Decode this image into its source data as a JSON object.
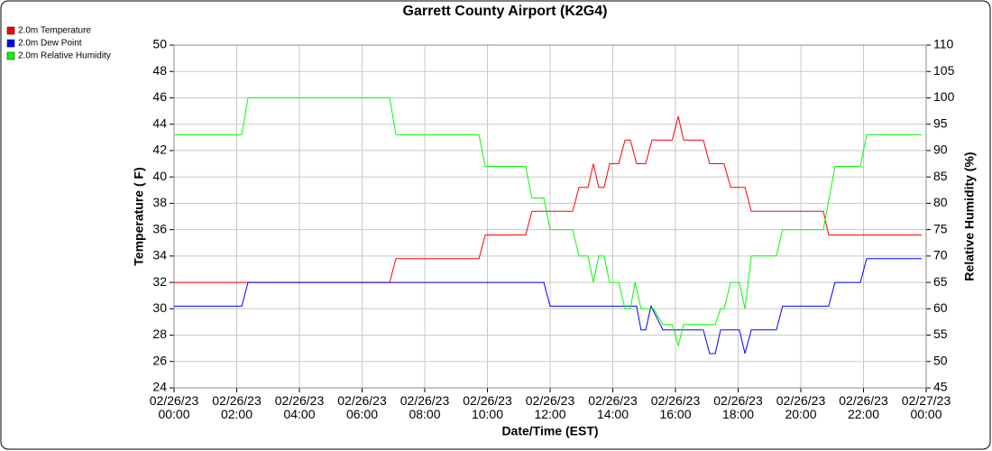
{
  "chart_data": {
    "type": "line",
    "title": "Garrett County Airport (K2G4)",
    "x_label": "Date/Time (EST)",
    "y_label": "Temperature ( F)",
    "y2_label": "Relative Humidity (%)",
    "legend": "top-left",
    "grid": true,
    "xlim": [
      0,
      24
    ],
    "xticks": [
      {
        "value": 0,
        "label": "02/26/23\n00:00"
      },
      {
        "value": 2,
        "label": "02/26/23\n02:00"
      },
      {
        "value": 4,
        "label": "02/26/23\n04:00"
      },
      {
        "value": 6,
        "label": "02/26/23\n06:00"
      },
      {
        "value": 8,
        "label": "02/26/23\n08:00"
      },
      {
        "value": 10,
        "label": "02/26/23\n10:00"
      },
      {
        "value": 12,
        "label": "02/26/23\n12:00"
      },
      {
        "value": 14,
        "label": "02/26/23\n14:00"
      },
      {
        "value": 16,
        "label": "02/26/23\n16:00"
      },
      {
        "value": 18,
        "label": "02/26/23\n18:00"
      },
      {
        "value": 20,
        "label": "02/26/23\n20:00"
      },
      {
        "value": 22,
        "label": "02/26/23\n22:00"
      },
      {
        "value": 24,
        "label": "02/27/23\n00:00"
      }
    ],
    "ylim": [
      24,
      50
    ],
    "yticks": [
      24,
      26,
      28,
      30,
      32,
      34,
      36,
      38,
      40,
      42,
      44,
      46,
      48,
      50
    ],
    "y2lim": [
      45,
      110
    ],
    "y2ticks": [
      45,
      50,
      55,
      60,
      65,
      70,
      75,
      80,
      85,
      90,
      95,
      100,
      105,
      110
    ],
    "series": [
      {
        "name": "2.0m Temperature",
        "color": "#ff0000",
        "x": [
          0,
          6.88,
          7.08,
          9.73,
          9.93,
          11.22,
          11.42,
          12.72,
          12.92,
          13.21,
          13.38,
          13.55,
          13.72,
          13.9,
          14.19,
          14.39,
          14.56,
          14.76,
          15.05,
          15.25,
          15.9,
          16.09,
          16.26,
          16.89,
          17.09,
          17.55,
          17.76,
          18.22,
          18.42,
          20.72,
          20.89,
          23.86
        ],
        "values": [
          32,
          32,
          33.8,
          33.8,
          35.6,
          35.6,
          37.4,
          37.4,
          39.2,
          39.2,
          41,
          39.2,
          39.2,
          41,
          41,
          42.8,
          42.8,
          41,
          41,
          42.8,
          42.8,
          44.6,
          42.8,
          42.8,
          41,
          41,
          39.2,
          39.2,
          37.4,
          37.4,
          35.6,
          35.6
        ]
      },
      {
        "name": "2.0m Dew Point",
        "color": "#0000ff",
        "x": [
          0,
          2.16,
          2.36,
          11.8,
          12.0,
          14.76,
          14.9,
          15.05,
          15.22,
          15.6,
          16.89,
          17.09,
          17.27,
          17.44,
          18.04,
          18.22,
          18.42,
          19.22,
          19.42,
          20.89,
          21.09,
          21.9,
          22.1,
          23.86
        ],
        "values": [
          30.2,
          30.2,
          32,
          32,
          30.2,
          30.2,
          28.4,
          28.4,
          30.2,
          28.4,
          28.4,
          26.6,
          26.6,
          28.4,
          28.4,
          26.6,
          28.4,
          28.4,
          30.2,
          30.2,
          32,
          32,
          33.8,
          33.8
        ]
      },
      {
        "name": "2.0m Relative Humidity",
        "color": "#00ff00",
        "axis": "y2",
        "x": [
          0,
          2.16,
          2.36,
          6.88,
          7.08,
          9.73,
          9.93,
          11.22,
          11.42,
          11.8,
          12.0,
          12.72,
          12.92,
          13.21,
          13.38,
          13.55,
          13.72,
          13.9,
          14.19,
          14.39,
          14.56,
          14.71,
          14.9,
          15.3,
          15.6,
          15.9,
          16.09,
          16.26,
          17.27,
          17.44,
          17.55,
          17.76,
          18.04,
          18.22,
          18.42,
          19.22,
          19.42,
          20.72,
          21.09,
          21.9,
          22.1,
          23.86
        ],
        "values": [
          93,
          93,
          100,
          100,
          93,
          93,
          87,
          87,
          81,
          81,
          75,
          75,
          70,
          70,
          65,
          70,
          70,
          65,
          65,
          60,
          60,
          65,
          60,
          60,
          57,
          57,
          53,
          57,
          57,
          60,
          60,
          65,
          65,
          60,
          70,
          70,
          75,
          75,
          87,
          87,
          93,
          93
        ]
      }
    ]
  }
}
